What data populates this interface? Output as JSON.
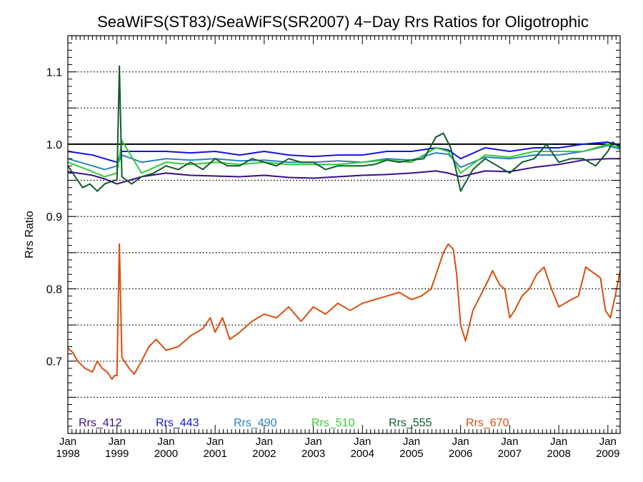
{
  "chart_data": {
    "type": "line",
    "title": "SeaWiFS(ST83)/SeaWiFS(SR2007) 4−Day Rrs Ratios for Oligotrophic",
    "ylabel": "Rrs Ratio",
    "xlabel": "",
    "xlim": [
      1998.0,
      2009.25
    ],
    "ylim": [
      0.6,
      1.15
    ],
    "y_ticks": [
      0.7,
      0.8,
      0.9,
      1.0,
      1.1
    ],
    "y_tick_labels": [
      "0.7",
      "0.8",
      "0.9",
      "1.0",
      "1.1"
    ],
    "x_ticks": [
      {
        "value": 1998,
        "month": "Jan",
        "year": "1998"
      },
      {
        "value": 1999,
        "month": "Jan",
        "year": "1999"
      },
      {
        "value": 2000,
        "month": "Jan",
        "year": "2000"
      },
      {
        "value": 2001,
        "month": "Jan",
        "year": "2001"
      },
      {
        "value": 2002,
        "month": "Jan",
        "year": "2002"
      },
      {
        "value": 2003,
        "month": "Jan",
        "year": "2003"
      },
      {
        "value": 2004,
        "month": "Jan",
        "year": "2004"
      },
      {
        "value": 2005,
        "month": "Jan",
        "year": "2005"
      },
      {
        "value": 2006,
        "month": "Jan",
        "year": "2006"
      },
      {
        "value": 2007,
        "month": "Jan",
        "year": "2007"
      },
      {
        "value": 2008,
        "month": "Jan",
        "year": "2008"
      },
      {
        "value": 2009,
        "month": "Jan",
        "year": "2009"
      }
    ],
    "grid": "horizontal dotted",
    "reference_line": 1.0,
    "legend_position": "bottom",
    "series": [
      {
        "name": "Rrs_412",
        "color": "#3a0e8a",
        "x": [
          1998.0,
          1998.5,
          1998.75,
          1999.0,
          1999.5,
          2000.0,
          2000.5,
          2001.0,
          2001.5,
          2002.0,
          2002.5,
          2003.0,
          2003.5,
          2004.0,
          2004.5,
          2005.0,
          2005.5,
          2005.75,
          2006.0,
          2006.5,
          2007.0,
          2007.5,
          2008.0,
          2008.5,
          2009.0,
          2009.25
        ],
        "y": [
          0.962,
          0.957,
          0.952,
          0.945,
          0.955,
          0.96,
          0.957,
          0.956,
          0.955,
          0.957,
          0.954,
          0.953,
          0.955,
          0.957,
          0.958,
          0.96,
          0.963,
          0.96,
          0.955,
          0.963,
          0.962,
          0.968,
          0.972,
          0.978,
          0.98,
          0.98
        ]
      },
      {
        "name": "Rrs_443",
        "color": "#1414dc",
        "x": [
          1998.0,
          1998.5,
          1998.75,
          1999.0,
          1999.1,
          1999.5,
          2000.0,
          2000.5,
          2001.0,
          2001.5,
          2002.0,
          2002.5,
          2003.0,
          2003.5,
          2004.0,
          2004.5,
          2005.0,
          2005.5,
          2005.75,
          2006.0,
          2006.5,
          2007.0,
          2007.5,
          2008.0,
          2008.5,
          2009.0,
          2009.25
        ],
        "y": [
          0.99,
          0.985,
          0.98,
          0.975,
          0.99,
          0.99,
          0.99,
          0.988,
          0.99,
          0.985,
          0.99,
          0.985,
          0.983,
          0.985,
          0.985,
          0.99,
          0.99,
          0.995,
          0.992,
          0.98,
          0.995,
          0.99,
          0.995,
          0.995,
          1.0,
          1.003,
          0.998
        ]
      },
      {
        "name": "Rrs_490",
        "color": "#2c7fc4",
        "x": [
          1998.0,
          1998.5,
          1998.75,
          1999.0,
          1999.1,
          1999.5,
          2000.0,
          2000.5,
          2001.0,
          2001.5,
          2002.0,
          2002.5,
          2003.0,
          2003.5,
          2004.0,
          2004.5,
          2005.0,
          2005.5,
          2005.75,
          2006.0,
          2006.5,
          2007.0,
          2007.5,
          2008.0,
          2008.5,
          2009.0,
          2009.25
        ],
        "y": [
          0.98,
          0.97,
          0.965,
          0.97,
          0.985,
          0.975,
          0.98,
          0.978,
          0.98,
          0.977,
          0.978,
          0.975,
          0.975,
          0.977,
          0.975,
          0.98,
          0.978,
          0.988,
          0.986,
          0.968,
          0.982,
          0.98,
          0.985,
          0.985,
          0.99,
          0.998,
          0.993
        ]
      },
      {
        "name": "Rrs_510",
        "color": "#33cc33",
        "x": [
          1998.0,
          1998.5,
          1998.75,
          1999.0,
          1999.1,
          1999.5,
          2000.0,
          2000.5,
          2001.0,
          2001.5,
          2002.0,
          2002.5,
          2003.0,
          2003.5,
          2004.0,
          2004.5,
          2005.0,
          2005.5,
          2005.75,
          2006.0,
          2006.5,
          2007.0,
          2007.5,
          2008.0,
          2008.5,
          2009.0,
          2009.25
        ],
        "y": [
          0.975,
          0.962,
          0.955,
          0.96,
          1.005,
          0.96,
          0.975,
          0.972,
          0.975,
          0.972,
          0.975,
          0.972,
          0.972,
          0.972,
          0.975,
          0.978,
          0.975,
          0.995,
          0.99,
          0.96,
          0.985,
          0.982,
          0.99,
          0.99,
          0.99,
          1.0,
          0.995
        ]
      },
      {
        "name": "Rrs_555",
        "color": "#0f5c2a",
        "x": [
          1998.0,
          1998.15,
          1998.3,
          1998.45,
          1998.6,
          1998.75,
          1998.95,
          1999.0,
          1999.05,
          1999.1,
          1999.3,
          1999.5,
          1999.75,
          2000.0,
          2000.25,
          2000.5,
          2000.75,
          2001.0,
          2001.25,
          2001.5,
          2001.75,
          2002.0,
          2002.25,
          2002.5,
          2002.75,
          2003.0,
          2003.25,
          2003.5,
          2003.75,
          2004.0,
          2004.25,
          2004.5,
          2004.75,
          2005.0,
          2005.25,
          2005.5,
          2005.65,
          2005.8,
          2005.92,
          2006.0,
          2006.25,
          2006.5,
          2006.75,
          2007.0,
          2007.25,
          2007.5,
          2007.75,
          2008.0,
          2008.25,
          2008.5,
          2008.75,
          2009.0,
          2009.1,
          2009.25
        ],
        "y": [
          0.97,
          0.955,
          0.94,
          0.945,
          0.935,
          0.945,
          0.95,
          0.95,
          1.108,
          0.955,
          0.945,
          0.955,
          0.96,
          0.97,
          0.965,
          0.975,
          0.965,
          0.98,
          0.97,
          0.97,
          0.98,
          0.975,
          0.97,
          0.98,
          0.975,
          0.975,
          0.965,
          0.97,
          0.97,
          0.97,
          0.972,
          0.978,
          0.975,
          0.978,
          0.98,
          1.01,
          1.015,
          0.995,
          0.96,
          0.935,
          0.965,
          0.98,
          0.97,
          0.96,
          0.975,
          0.98,
          1.0,
          0.975,
          0.98,
          0.98,
          0.97,
          0.99,
          1.003,
          0.995
        ]
      },
      {
        "name": "Rrs_670",
        "color": "#d94e0f",
        "x": [
          1998.0,
          1998.1,
          1998.2,
          1998.35,
          1998.5,
          1998.6,
          1998.7,
          1998.8,
          1998.9,
          1998.95,
          1999.0,
          1999.05,
          1999.1,
          1999.25,
          1999.35,
          1999.5,
          1999.65,
          1999.8,
          2000.0,
          2000.25,
          2000.5,
          2000.75,
          2000.9,
          2001.0,
          2001.15,
          2001.3,
          2001.5,
          2001.75,
          2002.0,
          2002.25,
          2002.5,
          2002.75,
          2003.0,
          2003.25,
          2003.5,
          2003.75,
          2004.0,
          2004.25,
          2004.5,
          2004.75,
          2005.0,
          2005.2,
          2005.4,
          2005.55,
          2005.65,
          2005.75,
          2005.85,
          2005.92,
          2006.0,
          2006.1,
          2006.25,
          2006.4,
          2006.55,
          2006.65,
          2006.8,
          2006.9,
          2007.0,
          2007.1,
          2007.25,
          2007.4,
          2007.55,
          2007.7,
          2007.85,
          2008.0,
          2008.25,
          2008.4,
          2008.55,
          2008.75,
          2008.85,
          2008.95,
          2009.05,
          2009.15,
          2009.25
        ],
        "y": [
          0.718,
          0.712,
          0.7,
          0.69,
          0.685,
          0.7,
          0.69,
          0.685,
          0.675,
          0.68,
          0.68,
          0.862,
          0.705,
          0.69,
          0.682,
          0.7,
          0.72,
          0.73,
          0.715,
          0.72,
          0.735,
          0.745,
          0.76,
          0.74,
          0.76,
          0.73,
          0.74,
          0.755,
          0.765,
          0.76,
          0.775,
          0.755,
          0.775,
          0.765,
          0.78,
          0.77,
          0.78,
          0.785,
          0.79,
          0.795,
          0.785,
          0.79,
          0.8,
          0.83,
          0.85,
          0.862,
          0.855,
          0.82,
          0.75,
          0.728,
          0.77,
          0.79,
          0.81,
          0.825,
          0.805,
          0.8,
          0.76,
          0.77,
          0.79,
          0.8,
          0.82,
          0.83,
          0.8,
          0.775,
          0.785,
          0.79,
          0.83,
          0.82,
          0.815,
          0.77,
          0.76,
          0.79,
          0.825
        ]
      }
    ]
  }
}
